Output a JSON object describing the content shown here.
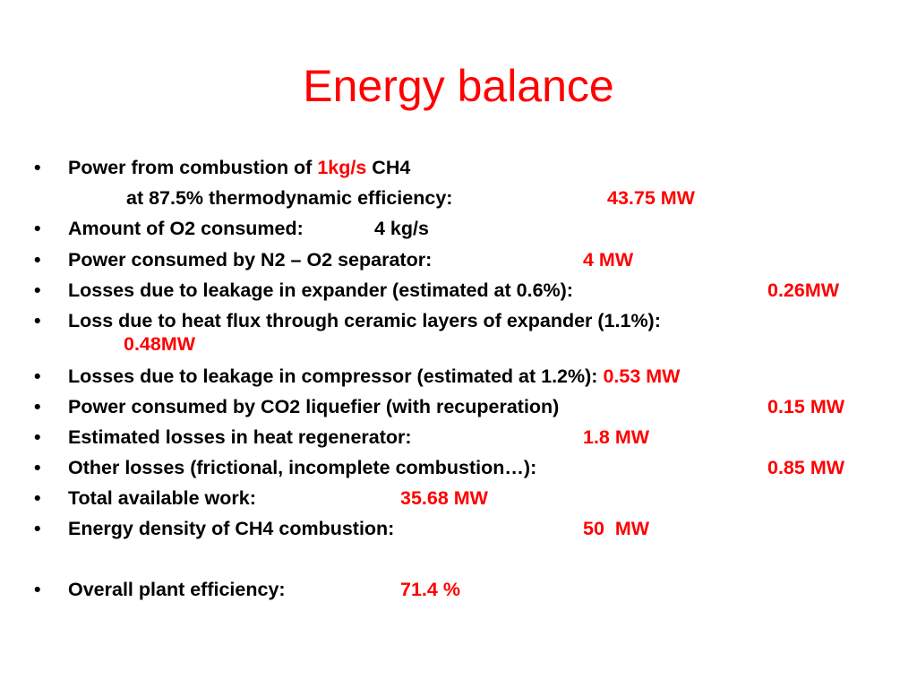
{
  "title": "Energy balance",
  "bullets": [
    {
      "label": "Power from combustion of",
      "highlight": "1kg/s",
      "label_end": "CH4",
      "detail": "at 87.5% thermodynamic efficiency:",
      "value": "43.75 MW"
    },
    {
      "label": "Amount of O2 consumed:",
      "value": "4 kg/s"
    },
    {
      "label": "Power consumed by N2 – O2 separator:",
      "value": "4 MW"
    },
    {
      "label": "Losses due to leakage in expander (estimated at 0.6%):",
      "value": "0.26MW"
    },
    {
      "label": "Loss due to heat flux through ceramic layers of expander (1.1%):",
      "value": "0.48MW"
    },
    {
      "label": "Losses due to leakage in compressor (estimated at 1.2%):",
      "value": "0.53 MW"
    },
    {
      "label": "Power consumed by CO2 liquefier (with recuperation)",
      "value": "0.15 MW"
    },
    {
      "label": "Estimated losses in heat regenerator:",
      "value": "1.8 MW"
    },
    {
      "label": "Other losses (frictional, incomplete combustion…):",
      "value": "0.85 MW"
    },
    {
      "label": "Total available work:",
      "value": "35.68 MW"
    },
    {
      "label": "Energy density of CH4 combustion:",
      "value": "50  MW"
    },
    {
      "label": "Overall plant efficiency:",
      "value": "71.4 %"
    }
  ]
}
